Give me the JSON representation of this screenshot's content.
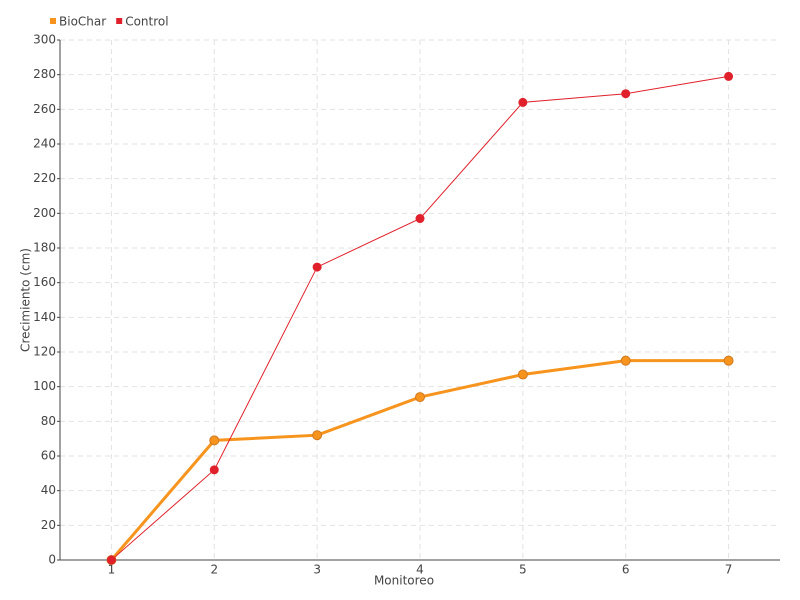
{
  "chart_data": {
    "type": "line",
    "x_label": "Monitoreo",
    "y_label": "Crecimiento (cm)",
    "categories": [
      "1",
      "2",
      "3",
      "4",
      "5",
      "6",
      "7"
    ],
    "series": [
      {
        "name": "BioChar",
        "color": "#f7941d",
        "values": [
          0,
          69,
          72,
          94,
          107,
          115,
          115
        ]
      },
      {
        "name": "Control",
        "color": "#e0202a",
        "values": [
          0,
          52,
          169,
          197,
          264,
          269,
          279
        ]
      }
    ],
    "ylim": [
      0,
      300
    ],
    "yticks": [
      0,
      20,
      40,
      60,
      80,
      100,
      120,
      140,
      160,
      180,
      200,
      220,
      240,
      260,
      280,
      300
    ],
    "grid": true,
    "legend": "top-left"
  }
}
